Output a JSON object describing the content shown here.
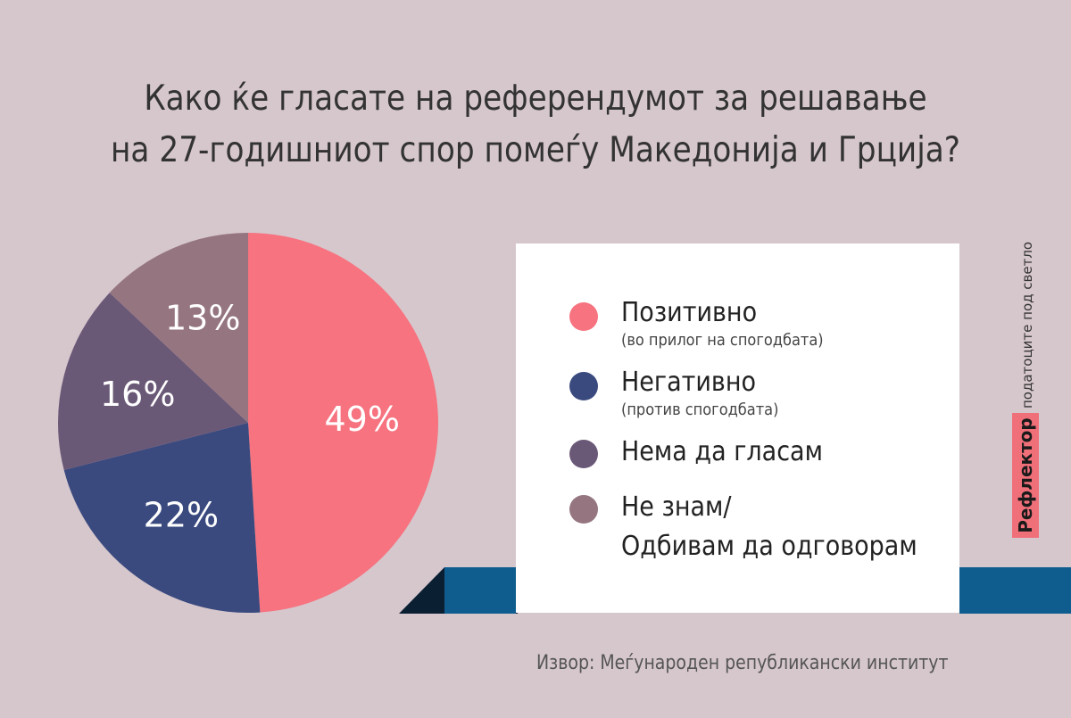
{
  "title": {
    "line1": "Како ќе гласате на референдумот за решавање",
    "line2": "на 27-годишниот спор помеѓу Македонија и Грција?"
  },
  "chart_data": {
    "type": "pie",
    "title": "Како ќе гласате на референдумот за решавање на 27-годишниот спор помеѓу Македонија и Грција?",
    "slices": [
      {
        "label": "Позитивно",
        "sublabel": "(во прилог на спогодбата)",
        "value": 49,
        "value_label": "49%",
        "color": "#f6737f"
      },
      {
        "label": "Негативно",
        "sublabel": "(против спогодбата)",
        "value": 22,
        "value_label": "22%",
        "color": "#3a4a7e"
      },
      {
        "label": "Нема да гласам",
        "sublabel": "",
        "value": 16,
        "value_label": "16%",
        "color": "#6a5877"
      },
      {
        "label": "Не знам/",
        "label_line2": "Одбивам да одговорам",
        "sublabel": "",
        "value": 13,
        "value_label": "13%",
        "color": "#957580"
      }
    ]
  },
  "legend": {
    "item1": {
      "label": "Позитивно",
      "sub": "(во прилог на спогодбата)"
    },
    "item2": {
      "label": "Негативно",
      "sub": "(против спогодбата)"
    },
    "item3": {
      "label": "Нема да гласам"
    },
    "item4": {
      "label1": "Не знам/",
      "label2": "Одбивам да одговорам"
    }
  },
  "source": "Извор: Меѓународен републикански институт",
  "brand": {
    "name": "Рефлектор",
    "tagline": "податоците под светло"
  },
  "colors": {
    "background": "#d6c7cd",
    "positive": "#f6737f",
    "negative": "#3a4a7e",
    "abstain": "#6a5877",
    "unsure": "#957580",
    "accent_bar": "#0f5d8e",
    "accent_dark": "#0b1f33"
  }
}
